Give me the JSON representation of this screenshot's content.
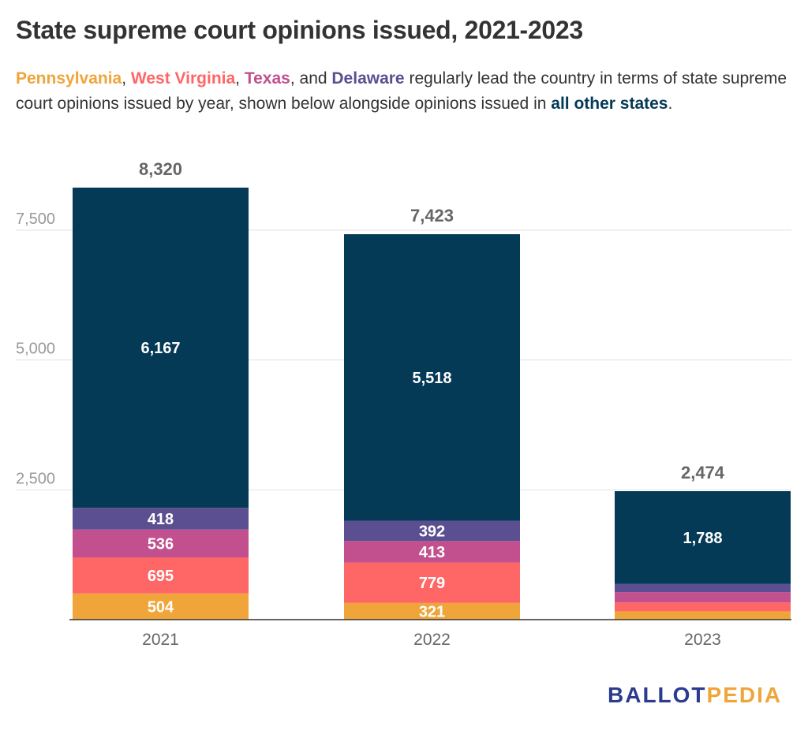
{
  "title": "State supreme court opinions issued, 2021-2023",
  "subtitle": {
    "pennsylvania": "Pennsylvania",
    "sep1": ", ",
    "west_virginia": "West Virginia",
    "sep2": ", ",
    "texas": "Texas",
    "sep3": ", and ",
    "delaware": "Delaware",
    "text1": " regularly lead the country in terms of state supreme court opinions issued by year, shown below alongside opinions issued in ",
    "all_other": "all other states",
    "end": "."
  },
  "logo": {
    "part1": "BALLOT",
    "part2": "PEDIA"
  },
  "colors": {
    "pennsylvania": "#f0a53a",
    "west_virginia": "#ff6666",
    "texas": "#c2508f",
    "delaware": "#5c4f91",
    "all_other": "#053a57",
    "axis_text": "#999999",
    "total_text": "#666666"
  },
  "chart_data": {
    "type": "bar",
    "stacked": true,
    "categories": [
      "2021",
      "2022",
      "2023"
    ],
    "series": [
      {
        "name": "Pennsylvania",
        "color": "#f0a53a",
        "values": [
          504,
          321,
          160
        ],
        "labels": [
          "504",
          "321",
          ""
        ]
      },
      {
        "name": "West Virginia",
        "color": "#ff6666",
        "values": [
          695,
          779,
          170
        ],
        "labels": [
          "695",
          "779",
          ""
        ]
      },
      {
        "name": "Texas",
        "color": "#c2508f",
        "values": [
          536,
          413,
          200
        ],
        "labels": [
          "536",
          "413",
          ""
        ]
      },
      {
        "name": "Delaware",
        "color": "#5c4f91",
        "values": [
          418,
          392,
          156
        ],
        "labels": [
          "418",
          "392",
          ""
        ]
      },
      {
        "name": "all other states",
        "color": "#053a57",
        "values": [
          6167,
          5518,
          1788
        ],
        "labels": [
          "6,167",
          "5,518",
          "1,788"
        ]
      }
    ],
    "totals": [
      8320,
      7423,
      2474
    ],
    "total_labels": [
      "8,320",
      "7,423",
      "2,474"
    ],
    "yticks": [
      2500,
      5000,
      7500
    ],
    "ytick_labels": [
      "2,500",
      "5,000",
      "7,500"
    ],
    "ylim": [
      0,
      8320
    ],
    "grid": true,
    "legend": "inline in subtitle"
  }
}
